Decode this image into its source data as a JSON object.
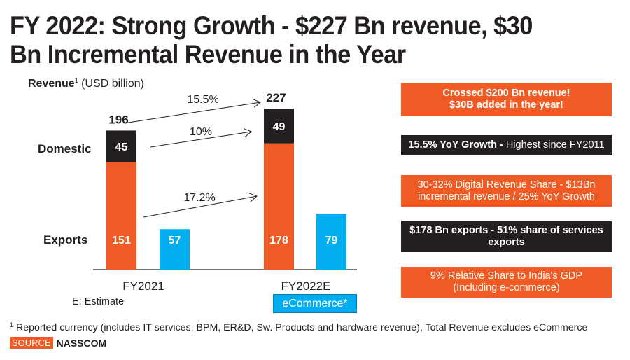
{
  "title": {
    "line1": "FY 2022: Strong Growth - $227 Bn revenue, $30",
    "line2": "Bn Incremental Revenue in the Year"
  },
  "revenue_label": {
    "bold": "Revenue",
    "sup": "1",
    "unit": "(USD billion)"
  },
  "row_labels": {
    "domestic": "Domestic",
    "exports": "Exports"
  },
  "estimate_note": "E: Estimate",
  "ecommerce_legend": "eCommerce*",
  "colors": {
    "exports": "#f05a24",
    "domestic": "#231f20",
    "ecommerce": "#00aeef",
    "text": "#231f20"
  },
  "chart_data": {
    "type": "bar",
    "title": "Revenue (USD billion)",
    "categories": [
      "FY2021",
      "FY2022E"
    ],
    "series": [
      {
        "name": "Exports",
        "values": [
          151,
          178
        ],
        "stack": "total"
      },
      {
        "name": "Domestic",
        "values": [
          45,
          49
        ],
        "stack": "total"
      },
      {
        "name": "eCommerce*",
        "values": [
          57,
          79
        ],
        "stack": "ecommerce"
      }
    ],
    "totals": [
      196,
      227
    ],
    "growth_annotations": [
      {
        "label": "15.5%",
        "applies_to": "Total"
      },
      {
        "label": "10%",
        "applies_to": "Domestic"
      },
      {
        "label": "17.2%",
        "applies_to": "Exports"
      }
    ],
    "xlabel": "",
    "ylabel": "Revenue (USD billion)",
    "ylim": [
      0,
      227
    ],
    "grid": false,
    "legend": "none"
  },
  "cards": [
    {
      "style": "orange",
      "lines": [
        [
          {
            "t": "Crossed $200 Bn revenue!",
            "b": true
          }
        ],
        [
          {
            "t": "$30B added in the year!",
            "b": true
          }
        ]
      ]
    },
    {
      "style": "dark",
      "lines": [
        [
          {
            "t": "15.5% YoY Growth - ",
            "b": true
          },
          {
            "t": "Highest since FY2011",
            "b": false
          }
        ]
      ]
    },
    {
      "style": "orange",
      "lines": [
        [
          {
            "t": "30-32% Digital Revenue Share - $13Bn",
            "b": false
          }
        ],
        [
          {
            "t": "incremental revenue / 25% YoY Growth",
            "b": false
          }
        ]
      ]
    },
    {
      "style": "dark",
      "lines": [
        [
          {
            "t": "$178 Bn exports - 51% share of services",
            "b": true
          }
        ],
        [
          {
            "t": "exports",
            "b": true
          }
        ]
      ]
    },
    {
      "style": "orange",
      "lines": [
        [
          {
            "t": "9% Relative Share to India's GDP",
            "b": false
          }
        ],
        [
          {
            "t": "(Including e-commerce)",
            "b": false
          }
        ]
      ]
    }
  ],
  "footnote": {
    "sup": "1",
    "text": " Reported currency (includes IT services, BPM, ER&D, Sw. Products and hardware revenue), Total Revenue excludes eCommerce"
  },
  "source": {
    "badge": "SOURCE",
    "name": "NASSCOM"
  }
}
